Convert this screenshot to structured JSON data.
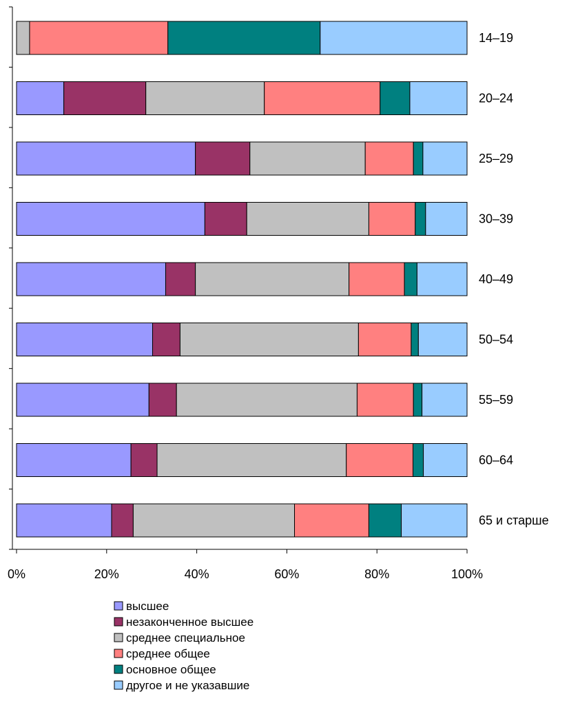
{
  "chart_data": {
    "type": "bar",
    "orientation": "horizontal",
    "stacked": "percent",
    "categories": [
      "14–19",
      "20–24",
      "25–29",
      "30–39",
      "40–49",
      "50–54",
      "55–59",
      "60–64",
      "65 и старше"
    ],
    "xlim": [
      0,
      100
    ],
    "xticks": [
      "0%",
      "20%",
      "40%",
      "60%",
      "80%",
      "100%"
    ],
    "tick_values": [
      0,
      20,
      40,
      60,
      80,
      100
    ],
    "grid": false,
    "legend_position": "bottom",
    "series": [
      {
        "name": "высшее",
        "color": "#9999FF",
        "values": [
          0,
          10.5,
          39.7,
          41.8,
          33.1,
          30.2,
          29.4,
          25.4,
          21.1
        ]
      },
      {
        "name": "незаконченное высшее",
        "color": "#993366",
        "values": [
          0,
          18.2,
          12.1,
          9.3,
          6.6,
          6.1,
          6.1,
          5.8,
          4.8
        ]
      },
      {
        "name": "среднее специальное",
        "color": "#C0C0C0",
        "values": [
          2.9,
          26.3,
          25.6,
          27.1,
          34.1,
          39.6,
          40.1,
          42.0,
          35.8
        ]
      },
      {
        "name": "среднее общее",
        "color": "#FF8080",
        "values": [
          30.7,
          25.7,
          10.7,
          10.3,
          12.3,
          11.7,
          12.5,
          14.8,
          16.5
        ]
      },
      {
        "name": "основное общее",
        "color": "#008080",
        "values": [
          33.8,
          6.6,
          2.1,
          2.3,
          2.8,
          1.6,
          1.9,
          2.3,
          7.2
        ]
      },
      {
        "name": "другое и не указавшие",
        "color": "#99CCFF",
        "values": [
          32.6,
          12.7,
          9.8,
          9.2,
          11.1,
          10.8,
          10.0,
          9.7,
          14.6
        ]
      }
    ]
  }
}
